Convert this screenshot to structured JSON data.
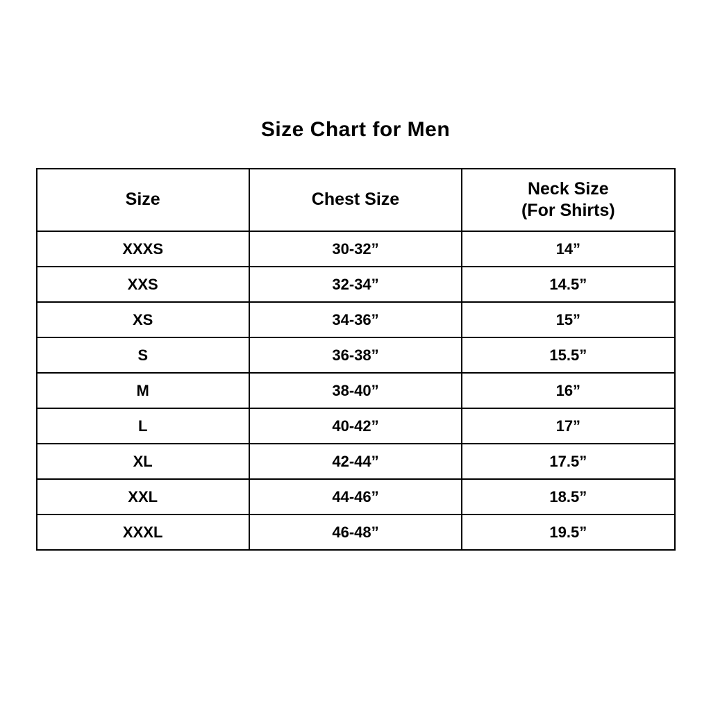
{
  "title": "Size Chart for Men",
  "colors": {
    "background": "#ffffff",
    "text": "#000000",
    "border": "#000000"
  },
  "chart_data": {
    "type": "table",
    "title": "Size Chart for Men",
    "columns": {
      "size": "Size",
      "chest": "Chest Size",
      "neck_line1": "Neck Size",
      "neck_line2": "(For Shirts)"
    },
    "column_labels": [
      "Size",
      "Chest Size",
      "Neck Size (For Shirts)"
    ],
    "rows": [
      {
        "size": "XXXS",
        "chest": "30-32”",
        "neck": "14”"
      },
      {
        "size": "XXS",
        "chest": "32-34”",
        "neck": "14.5”"
      },
      {
        "size": "XS",
        "chest": "34-36”",
        "neck": "15”"
      },
      {
        "size": "S",
        "chest": "36-38”",
        "neck": "15.5”"
      },
      {
        "size": "M",
        "chest": "38-40”",
        "neck": "16”"
      },
      {
        "size": "L",
        "chest": "40-42”",
        "neck": "17”"
      },
      {
        "size": "XL",
        "chest": "42-44”",
        "neck": "17.5”"
      },
      {
        "size": "XXL",
        "chest": "44-46”",
        "neck": "18.5”"
      },
      {
        "size": "XXXL",
        "chest": "46-48”",
        "neck": "19.5”"
      }
    ]
  }
}
